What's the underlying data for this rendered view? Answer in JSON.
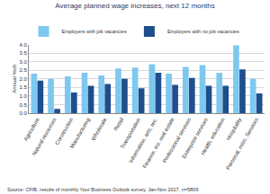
{
  "chart_data": {
    "type": "bar",
    "title": "Average planned wage increases, next 12 months",
    "y_label": "Annual %ch",
    "annotations": [
      "Source: CFIB, results of monthly Your Business Outlook survey, Jan-Nov 2017, n=5809"
    ],
    "categories": [
      "Agriculture",
      "Natural resources",
      "Construction",
      "Manufacturing",
      "Wholesale",
      "Retail",
      "Transportation",
      "Information, arts, rec.",
      "Finance, ins. real estate",
      "Professional services",
      "Enterprise services",
      "Health, education",
      "Hospitality",
      "Personal, misc. Services"
    ],
    "series": [
      {
        "name": "Employers with job vacancies",
        "color": "#7ec8f0",
        "values": [
          2.3,
          2.0,
          2.15,
          2.35,
          2.2,
          2.6,
          2.65,
          2.85,
          2.3,
          2.7,
          2.8,
          2.35,
          3.95,
          2.0
        ]
      },
      {
        "name": "Employers with no job vacancies",
        "color": "#1f4e8c",
        "values": [
          1.9,
          0.25,
          1.2,
          1.6,
          1.7,
          2.0,
          1.45,
          2.35,
          1.65,
          2.05,
          1.6,
          1.6,
          2.55,
          1.15
        ]
      }
    ],
    "ylim": [
      0,
      4
    ],
    "yticks": [
      {
        "value": 0,
        "label": "0.0"
      },
      {
        "value": 0.5,
        "label": "0.5"
      },
      {
        "value": 1,
        "label": "1.0"
      },
      {
        "value": 1.5,
        "label": "1.5"
      },
      {
        "value": 2,
        "label": "2.0"
      },
      {
        "value": 2.5,
        "label": "2.5"
      },
      {
        "value": 3,
        "label": "3.0"
      },
      {
        "value": 3.5,
        "label": "3.5"
      },
      {
        "value": 4,
        "label": "4.0"
      }
    ],
    "grid": true,
    "legend": "top"
  }
}
